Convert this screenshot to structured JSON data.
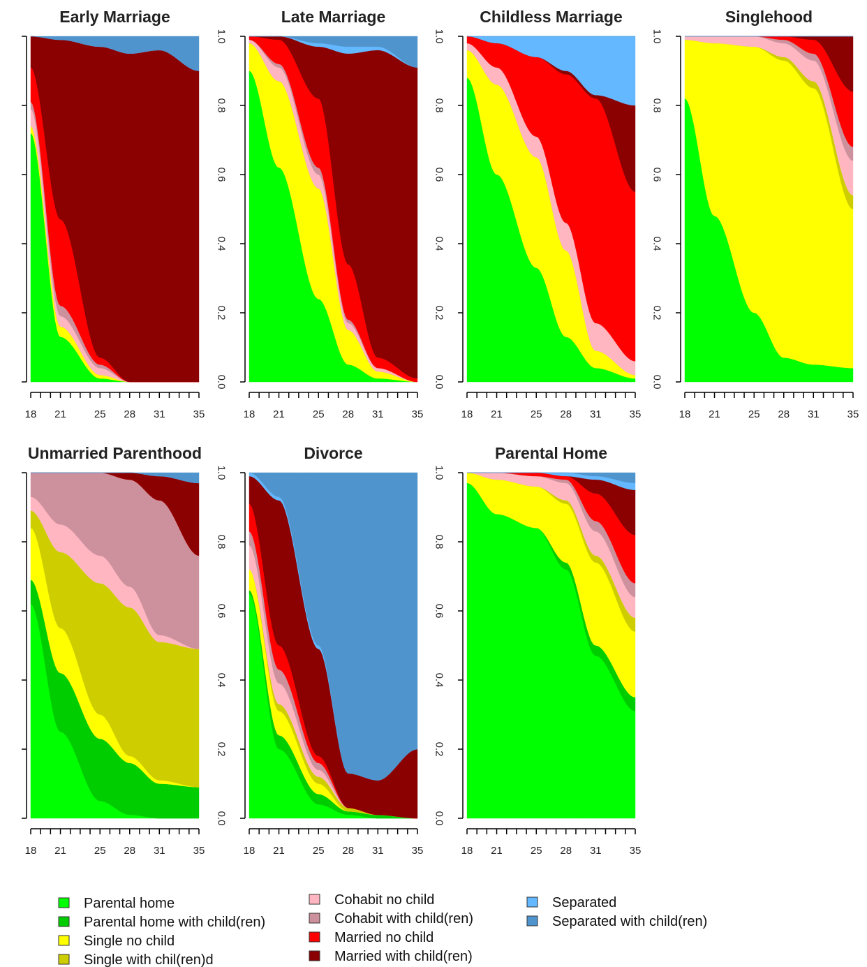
{
  "chart_data": {
    "type": "area",
    "layout": "stacked area (state distribution) plots, 7 panels",
    "states": [
      {
        "name": "Parental home",
        "color": "#00FF00"
      },
      {
        "name": "Parental home with child(ren)",
        "color": "#00CD00"
      },
      {
        "name": "Single no child",
        "color": "#FFFF00"
      },
      {
        "name": "Single with chil(ren)d",
        "color": "#CDCD00"
      },
      {
        "name": "Cohabit no child",
        "color": "#FFB6C1"
      },
      {
        "name": "Cohabit with child(ren)",
        "color": "#CD919E"
      },
      {
        "name": "Married no child",
        "color": "#FF0000"
      },
      {
        "name": "Married with child(ren)",
        "color": "#8B0000"
      },
      {
        "name": "Separated",
        "color": "#63B8FF"
      },
      {
        "name": "Separated with child(ren)",
        "color": "#4F94CD"
      }
    ],
    "x": [
      18,
      21,
      25,
      28,
      31,
      35
    ],
    "x_tick_labels": [
      "18",
      "21",
      "25",
      "28",
      "31",
      "35"
    ],
    "xlim": [
      18,
      35
    ],
    "ylim": [
      0,
      1
    ],
    "y_tick_labels": [
      "0.0",
      "0.2",
      "0.4",
      "0.6",
      "0.8",
      "1.0"
    ],
    "panels": [
      {
        "title": "Early Marriage",
        "shares": [
          [
            0.72,
            0.0,
            0.02,
            0.0,
            0.05,
            0.02,
            0.1,
            0.09,
            0.0,
            0.0
          ],
          [
            0.13,
            0.0,
            0.03,
            0.0,
            0.03,
            0.03,
            0.25,
            0.52,
            0.0,
            0.01
          ],
          [
            0.01,
            0.0,
            0.01,
            0.0,
            0.02,
            0.01,
            0.02,
            0.9,
            0.0,
            0.03
          ],
          [
            0.0,
            0.0,
            0.0,
            0.0,
            0.0,
            0.0,
            0.0,
            0.95,
            0.0,
            0.05
          ],
          [
            0.0,
            0.0,
            0.0,
            0.0,
            0.0,
            0.0,
            0.0,
            0.96,
            0.0,
            0.04
          ],
          [
            0.0,
            0.0,
            0.0,
            0.0,
            0.0,
            0.0,
            0.0,
            0.9,
            0.0,
            0.1
          ]
        ]
      },
      {
        "title": "Late Marriage",
        "shares": [
          [
            0.9,
            0.0,
            0.08,
            0.0,
            0.01,
            0.0,
            0.01,
            0.0,
            0.0,
            0.0
          ],
          [
            0.62,
            0.0,
            0.25,
            0.0,
            0.04,
            0.01,
            0.07,
            0.01,
            0.0,
            0.0
          ],
          [
            0.24,
            0.0,
            0.32,
            0.0,
            0.04,
            0.02,
            0.2,
            0.15,
            0.01,
            0.02
          ],
          [
            0.05,
            0.0,
            0.1,
            0.0,
            0.02,
            0.01,
            0.16,
            0.61,
            0.02,
            0.03
          ],
          [
            0.01,
            0.0,
            0.02,
            0.0,
            0.01,
            0.0,
            0.03,
            0.89,
            0.01,
            0.03
          ],
          [
            0.0,
            0.0,
            0.0,
            0.0,
            0.0,
            0.0,
            0.01,
            0.9,
            0.0,
            0.09
          ]
        ]
      },
      {
        "title": "Childless Marriage",
        "shares": [
          [
            0.88,
            0.0,
            0.08,
            0.0,
            0.02,
            0.0,
            0.02,
            0.0,
            0.0,
            0.0
          ],
          [
            0.6,
            0.0,
            0.26,
            0.0,
            0.05,
            0.0,
            0.07,
            0.0,
            0.02,
            0.0
          ],
          [
            0.33,
            0.0,
            0.32,
            0.0,
            0.06,
            0.0,
            0.23,
            0.0,
            0.06,
            0.0
          ],
          [
            0.13,
            0.0,
            0.25,
            0.0,
            0.08,
            0.0,
            0.43,
            0.01,
            0.1,
            0.0
          ],
          [
            0.04,
            0.0,
            0.05,
            0.0,
            0.08,
            0.0,
            0.65,
            0.01,
            0.17,
            0.0
          ],
          [
            0.01,
            0.0,
            0.01,
            0.0,
            0.04,
            0.0,
            0.49,
            0.25,
            0.2,
            0.0
          ]
        ]
      },
      {
        "title": "Singlehood",
        "shares": [
          [
            0.82,
            0.0,
            0.17,
            0.0,
            0.01,
            0.0,
            0.0,
            0.0,
            0.0,
            0.0
          ],
          [
            0.48,
            0.0,
            0.5,
            0.0,
            0.02,
            0.0,
            0.0,
            0.0,
            0.0,
            0.0
          ],
          [
            0.2,
            0.0,
            0.77,
            0.0,
            0.03,
            0.0,
            0.0,
            0.0,
            0.0,
            0.0
          ],
          [
            0.07,
            0.0,
            0.86,
            0.01,
            0.04,
            0.01,
            0.01,
            0.0,
            0.0,
            0.0
          ],
          [
            0.05,
            0.0,
            0.8,
            0.02,
            0.06,
            0.02,
            0.04,
            0.01,
            0.0,
            0.0
          ],
          [
            0.04,
            0.0,
            0.46,
            0.04,
            0.1,
            0.04,
            0.16,
            0.16,
            0.0,
            0.0
          ]
        ]
      },
      {
        "title": "Unmarried Parenthood",
        "shares": [
          [
            0.62,
            0.07,
            0.15,
            0.05,
            0.04,
            0.07,
            0.0,
            0.0,
            0.0,
            0.0
          ],
          [
            0.25,
            0.17,
            0.13,
            0.22,
            0.08,
            0.15,
            0.0,
            0.0,
            0.0,
            0.0
          ],
          [
            0.05,
            0.18,
            0.07,
            0.38,
            0.08,
            0.24,
            0.0,
            0.0,
            0.0,
            0.0
          ],
          [
            0.01,
            0.15,
            0.02,
            0.43,
            0.06,
            0.31,
            0.0,
            0.02,
            0.0,
            0.0
          ],
          [
            0.0,
            0.1,
            0.01,
            0.4,
            0.02,
            0.39,
            0.0,
            0.07,
            0.0,
            0.01
          ],
          [
            0.0,
            0.09,
            0.0,
            0.4,
            0.0,
            0.27,
            0.0,
            0.21,
            0.0,
            0.03
          ]
        ]
      },
      {
        "title": "Divorce",
        "shares": [
          [
            0.65,
            0.01,
            0.06,
            0.0,
            0.07,
            0.04,
            0.08,
            0.08,
            0.01,
            0.0
          ],
          [
            0.2,
            0.04,
            0.07,
            0.02,
            0.06,
            0.04,
            0.07,
            0.42,
            0.01,
            0.07
          ],
          [
            0.04,
            0.03,
            0.03,
            0.02,
            0.02,
            0.02,
            0.02,
            0.31,
            0.01,
            0.5
          ],
          [
            0.01,
            0.01,
            0.0,
            0.01,
            0.0,
            0.0,
            0.0,
            0.1,
            0.0,
            0.87
          ],
          [
            0.0,
            0.01,
            0.0,
            0.0,
            0.0,
            0.0,
            0.0,
            0.1,
            0.0,
            0.89
          ],
          [
            0.0,
            0.0,
            0.0,
            0.0,
            0.0,
            0.0,
            0.0,
            0.2,
            0.0,
            0.8
          ]
        ]
      },
      {
        "title": "Parental Home",
        "shares": [
          [
            0.97,
            0.0,
            0.03,
            0.0,
            0.0,
            0.0,
            0.0,
            0.0,
            0.0,
            0.0
          ],
          [
            0.88,
            0.0,
            0.1,
            0.0,
            0.02,
            0.0,
            0.0,
            0.0,
            0.0,
            0.0
          ],
          [
            0.84,
            0.0,
            0.12,
            0.0,
            0.03,
            0.0,
            0.01,
            0.0,
            0.0,
            0.0
          ],
          [
            0.72,
            0.02,
            0.17,
            0.01,
            0.05,
            0.01,
            0.01,
            0.0,
            0.01,
            0.0
          ],
          [
            0.47,
            0.03,
            0.24,
            0.02,
            0.07,
            0.03,
            0.08,
            0.04,
            0.01,
            0.01
          ],
          [
            0.31,
            0.04,
            0.19,
            0.04,
            0.06,
            0.04,
            0.14,
            0.13,
            0.02,
            0.03
          ]
        ]
      }
    ]
  }
}
